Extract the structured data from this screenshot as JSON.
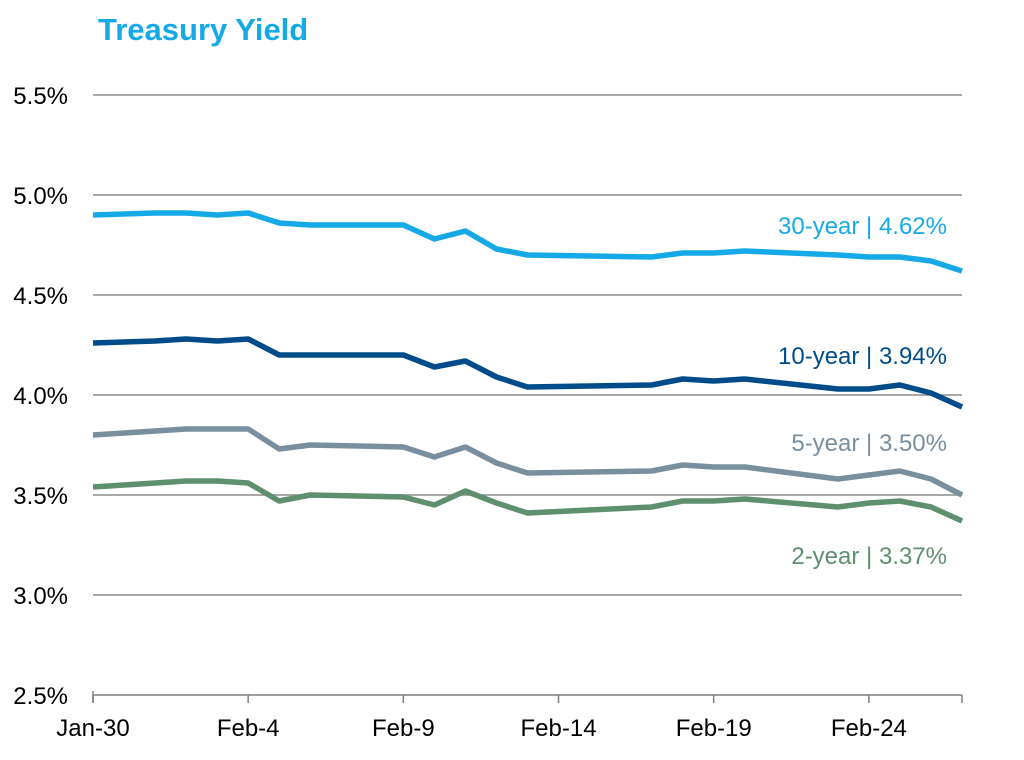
{
  "chart_data": {
    "type": "line",
    "title": "Treasury Yield",
    "xlabel": "",
    "ylabel": "",
    "ylim": [
      2.5,
      5.5
    ],
    "y_ticks": [
      "2.5%",
      "3.0%",
      "3.5%",
      "4.0%",
      "4.5%",
      "5.0%",
      "5.5%"
    ],
    "y_tick_values": [
      2.5,
      3.0,
      3.5,
      4.0,
      4.5,
      5.0,
      5.5
    ],
    "x_start": "Jan-30",
    "x_end": "Feb-27",
    "x_ticks": [
      "Jan-30",
      "Feb-4",
      "Feb-9",
      "Feb-14",
      "Feb-19",
      "Feb-24"
    ],
    "x_tick_dates": [
      "2023-01-30",
      "2023-02-04",
      "2023-02-09",
      "2023-02-14",
      "2023-02-19",
      "2023-02-24"
    ],
    "grid": true,
    "legend": "none",
    "x": [
      "2023-01-30",
      "2023-02-01",
      "2023-02-02",
      "2023-02-03",
      "2023-02-04",
      "2023-02-05",
      "2023-02-06",
      "2023-02-09",
      "2023-02-10",
      "2023-02-11",
      "2023-02-12",
      "2023-02-13",
      "2023-02-17",
      "2023-02-18",
      "2023-02-19",
      "2023-02-20",
      "2023-02-23",
      "2023-02-24",
      "2023-02-25",
      "2023-02-26",
      "2023-02-27"
    ],
    "series": [
      {
        "name": "30-year",
        "label": "30-year | 4.62%",
        "color": "#16A9E7",
        "values": [
          4.9,
          4.91,
          4.91,
          4.9,
          4.91,
          4.86,
          4.85,
          4.85,
          4.78,
          4.82,
          4.73,
          4.7,
          4.69,
          4.71,
          4.71,
          4.72,
          4.7,
          4.69,
          4.69,
          4.67,
          4.62
        ]
      },
      {
        "name": "10-year",
        "label": "10-year | 3.94%",
        "color": "#004C8A",
        "values": [
          4.26,
          4.27,
          4.28,
          4.27,
          4.28,
          4.2,
          4.2,
          4.2,
          4.14,
          4.17,
          4.09,
          4.04,
          4.05,
          4.08,
          4.07,
          4.08,
          4.03,
          4.03,
          4.05,
          4.01,
          3.94
        ]
      },
      {
        "name": "5-year",
        "label": "5-year | 3.50%",
        "color": "#7A8F9E",
        "values": [
          3.8,
          3.82,
          3.83,
          3.83,
          3.83,
          3.73,
          3.75,
          3.74,
          3.69,
          3.74,
          3.66,
          3.61,
          3.62,
          3.65,
          3.64,
          3.64,
          3.58,
          3.6,
          3.62,
          3.58,
          3.5
        ]
      },
      {
        "name": "2-year",
        "label": "2-year | 3.37%",
        "color": "#5E8F6E",
        "values": [
          3.54,
          3.56,
          3.57,
          3.57,
          3.56,
          3.47,
          3.5,
          3.49,
          3.45,
          3.52,
          3.46,
          3.41,
          3.44,
          3.47,
          3.47,
          3.48,
          3.44,
          3.46,
          3.47,
          3.44,
          3.37
        ]
      }
    ]
  },
  "colors": {
    "title": "#16A9E7",
    "grid": "#8C8C8C",
    "axis": "#7F7F7F"
  }
}
